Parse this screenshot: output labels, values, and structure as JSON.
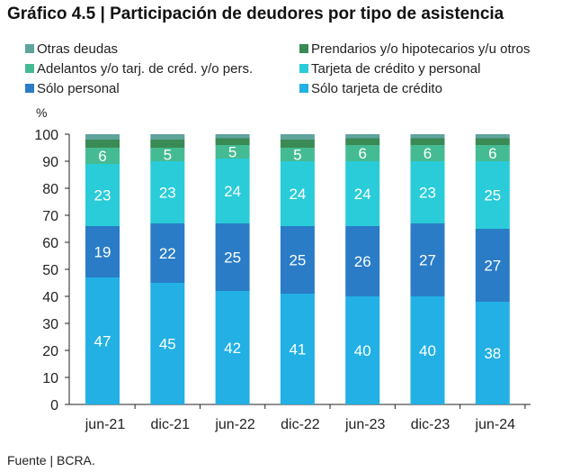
{
  "chart_data": {
    "type": "bar",
    "stacked": true,
    "title": "Gráfico 4.5 | Participación de deudores por tipo de asistencia",
    "ylabel": "%",
    "ylim": [
      0,
      100
    ],
    "yticks": [
      0,
      10,
      20,
      30,
      40,
      50,
      60,
      70,
      80,
      90,
      100
    ],
    "categories": [
      "jun-21",
      "dic-21",
      "jun-22",
      "dic-22",
      "jun-23",
      "dic-23",
      "jun-24"
    ],
    "series": [
      {
        "name": "Sólo tarjeta de crédito",
        "color": "#22b0e5",
        "values": [
          47,
          45,
          42,
          41,
          40,
          40,
          38
        ],
        "labels": true
      },
      {
        "name": "Sólo personal",
        "color": "#2a7cc7",
        "values": [
          19,
          22,
          25,
          25,
          26,
          27,
          27
        ],
        "labels": true
      },
      {
        "name": "Tarjeta de crédito y personal",
        "color": "#29ccd8",
        "values": [
          23,
          23,
          24,
          24,
          24,
          23,
          25
        ],
        "labels": true
      },
      {
        "name": "Adelantos y/o tarj. de créd. y/o pers.",
        "color": "#45bb94",
        "values": [
          6,
          5,
          5,
          5,
          6,
          6,
          6
        ],
        "labels": true
      },
      {
        "name": "Prendarios y/o hipotecarios y/u otros",
        "color": "#3a8a55",
        "values": [
          3,
          3,
          2.5,
          3,
          2.5,
          2.5,
          2.5
        ],
        "labels": false
      },
      {
        "name": "Otras deudas",
        "color": "#5fa39d",
        "values": [
          2,
          2,
          1.5,
          2,
          1.5,
          1.5,
          1.5
        ],
        "labels": false
      }
    ],
    "legend_order": [
      5,
      4,
      3,
      2,
      1,
      0
    ],
    "legend": "top",
    "grid": false
  },
  "source": "Fuente | BCRA."
}
